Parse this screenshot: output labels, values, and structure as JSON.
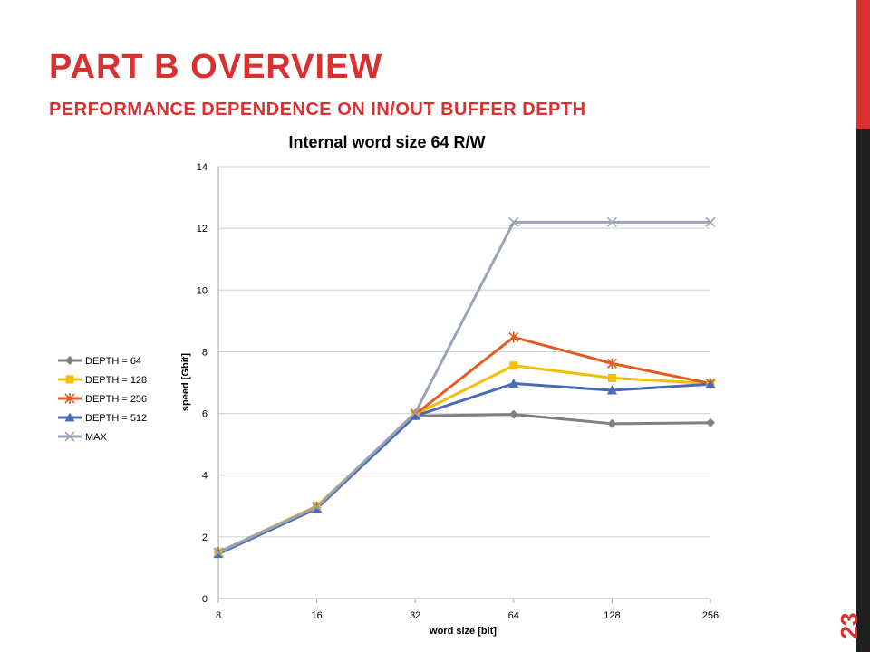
{
  "slide": {
    "title": "PART B OVERVIEW",
    "subtitle": "PERFORMANCE DEPENDENCE ON IN/OUT BUFFER DEPTH",
    "slide_number": "23",
    "accent_color": "#d9312f"
  },
  "chart_data": {
    "type": "line",
    "title": "Internal word size 64 R/W",
    "xlabel": "word size [bit]",
    "ylabel": "speed [Gbit]",
    "categories": [
      "8",
      "16",
      "32",
      "64",
      "128",
      "256"
    ],
    "ylim": [
      0,
      14
    ],
    "yticks": [
      0,
      2,
      4,
      6,
      8,
      10,
      12,
      14
    ],
    "grid": "horizontal",
    "legend_position": "left",
    "series": [
      {
        "name": "DEPTH = 64",
        "color": "#7f7f7f",
        "marker": "diamond",
        "values": [
          1.5,
          2.95,
          5.92,
          5.97,
          5.67,
          5.7
        ]
      },
      {
        "name": "DEPTH = 128",
        "color": "#f2c000",
        "marker": "square",
        "values": [
          1.5,
          3.0,
          5.97,
          7.55,
          7.15,
          6.97
        ]
      },
      {
        "name": "DEPTH = 256",
        "color": "#e35b24",
        "marker": "star",
        "values": [
          1.5,
          2.97,
          5.97,
          8.47,
          7.62,
          6.97
        ]
      },
      {
        "name": "DEPTH = 512",
        "color": "#4a6ab6",
        "marker": "triangle",
        "values": [
          1.45,
          2.92,
          5.92,
          6.97,
          6.75,
          6.95
        ]
      },
      {
        "name": "MAX",
        "color": "#9ba3b6",
        "marker": "x",
        "values": [
          1.5,
          2.97,
          6.02,
          12.2,
          12.2,
          12.2
        ]
      }
    ]
  }
}
